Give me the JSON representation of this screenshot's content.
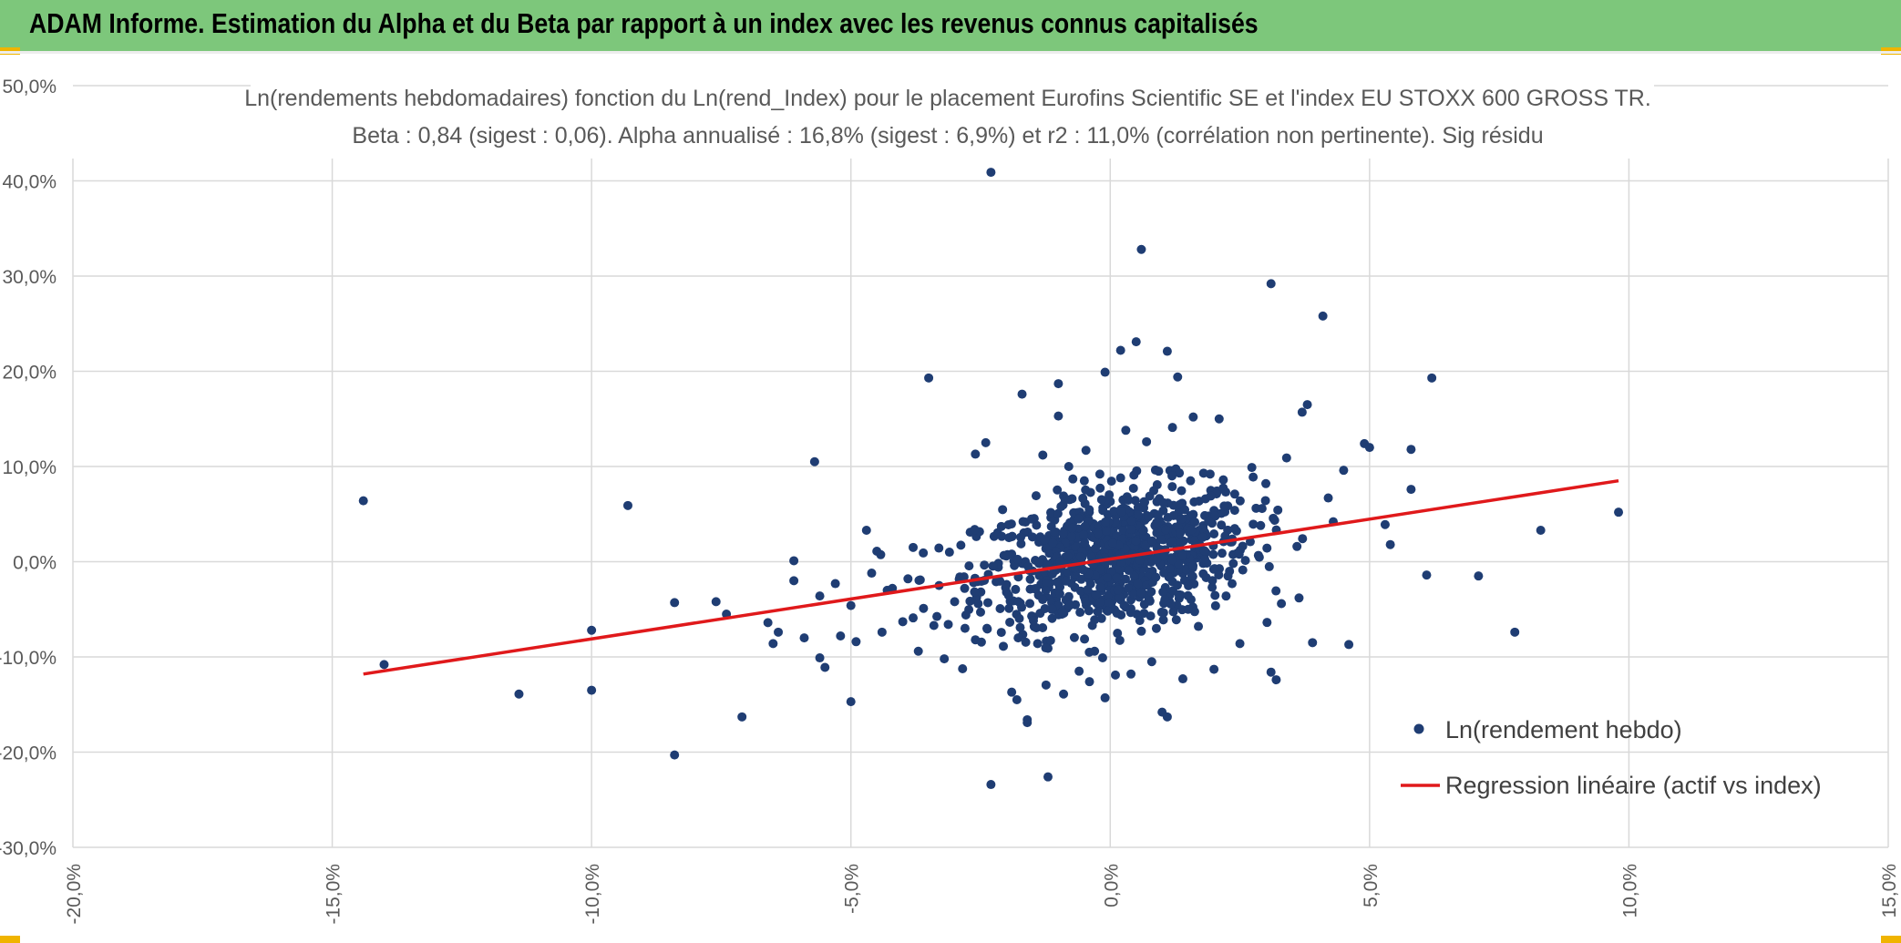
{
  "header": {
    "title": "ADAM Informe. Estimation du Alpha et du Beta par rapport à un index avec les revenus connus capitalisés"
  },
  "colors": {
    "banner": "#7dc77b",
    "points": "#1f3d73",
    "regression": "#e0191b",
    "grid": "#d9d9d9",
    "accent": "#f0b400"
  },
  "chart_data": {
    "type": "scatter",
    "title": "Ln(rendements hebdomadaires) fonction du Ln(rend_Index) pour le placement Eurofins Scientific SE et l'index EU STOXX 600 GROSS TR.",
    "subtitle": "Beta : 0,84 (sigest : 0,06). Alpha annualisé : 16,8% (sigest : 6,9%) et r2 : 11,0% (corrélation non pertinente). Sig résidu",
    "xlim": [
      -20,
      15
    ],
    "ylim": [
      -30,
      50
    ],
    "x_ticks": [
      "-20,0%",
      "-15,0%",
      "-10,0%",
      "-5,0%",
      "0,0%",
      "5,0%",
      "10,0%",
      "15,0%"
    ],
    "y_ticks": [
      "-30,0%",
      "-20,0%",
      "-10,0%",
      "0,0%",
      "10,0%",
      "20,0%",
      "30,0%",
      "40,0%",
      "50,0%"
    ],
    "grid": true,
    "legend_position": "bottom-right",
    "series": [
      {
        "name": "Ln(rendement hebdo)",
        "type": "scatter",
        "points": [
          [
            -14.4,
            6.4
          ],
          [
            -14.0,
            -10.8
          ],
          [
            -11.4,
            -13.9
          ],
          [
            -10.0,
            -7.2
          ],
          [
            -10.0,
            -13.5
          ],
          [
            -9.3,
            5.9
          ],
          [
            -8.4,
            -4.3
          ],
          [
            -8.4,
            -20.3
          ],
          [
            -7.6,
            -4.2
          ],
          [
            -7.4,
            -5.5
          ],
          [
            -7.1,
            -16.3
          ],
          [
            -6.6,
            -6.4
          ],
          [
            -6.5,
            -8.6
          ],
          [
            -6.4,
            -7.4
          ],
          [
            -6.1,
            0.1
          ],
          [
            -6.1,
            -2.0
          ],
          [
            -5.9,
            -8.0
          ],
          [
            -5.7,
            10.5
          ],
          [
            -5.6,
            -10.1
          ],
          [
            -5.6,
            -3.6
          ],
          [
            -5.5,
            -11.1
          ],
          [
            -5.3,
            -2.3
          ],
          [
            -5.2,
            -7.8
          ],
          [
            -5.0,
            -4.6
          ],
          [
            -5.0,
            -14.7
          ],
          [
            -4.9,
            -8.4
          ],
          [
            -4.7,
            3.3
          ],
          [
            -4.5,
            1.1
          ],
          [
            -4.4,
            -7.4
          ],
          [
            -4.2,
            -2.8
          ],
          [
            -4.0,
            -6.3
          ],
          [
            -3.8,
            1.5
          ],
          [
            -3.7,
            -9.4
          ],
          [
            -3.5,
            19.3
          ],
          [
            -3.4,
            -6.7
          ],
          [
            -3.2,
            -10.2
          ],
          [
            -3.0,
            -4.2
          ],
          [
            -2.8,
            -7.0
          ],
          [
            -2.7,
            3.1
          ],
          [
            -2.6,
            11.3
          ],
          [
            -2.4,
            12.5
          ],
          [
            -2.3,
            40.9
          ],
          [
            -2.3,
            -23.4
          ],
          [
            -2.1,
            3.7
          ],
          [
            -2.0,
            -3.2
          ],
          [
            -1.9,
            -13.7
          ],
          [
            -1.8,
            -14.5
          ],
          [
            -1.7,
            17.6
          ],
          [
            -1.6,
            -16.9
          ],
          [
            -1.6,
            -16.6
          ],
          [
            -1.4,
            -8.6
          ],
          [
            -1.3,
            11.2
          ],
          [
            -1.2,
            -22.6
          ],
          [
            -1.0,
            15.3
          ],
          [
            -1.0,
            18.7
          ],
          [
            -0.9,
            -13.9
          ],
          [
            -0.8,
            10.0
          ],
          [
            -0.6,
            -11.5
          ],
          [
            -0.5,
            8.5
          ],
          [
            -0.4,
            -12.6
          ],
          [
            -0.2,
            9.2
          ],
          [
            -0.1,
            19.9
          ],
          [
            -0.1,
            -14.3
          ],
          [
            0.1,
            -11.9
          ],
          [
            0.2,
            22.2
          ],
          [
            0.3,
            13.8
          ],
          [
            0.4,
            -11.8
          ],
          [
            0.5,
            23.1
          ],
          [
            0.6,
            32.8
          ],
          [
            0.7,
            12.6
          ],
          [
            0.8,
            -10.5
          ],
          [
            1.0,
            -15.8
          ],
          [
            1.1,
            -16.3
          ],
          [
            1.1,
            22.1
          ],
          [
            1.2,
            14.1
          ],
          [
            1.3,
            19.4
          ],
          [
            1.4,
            -12.3
          ],
          [
            1.6,
            15.2
          ],
          [
            1.8,
            9.3
          ],
          [
            2.0,
            -11.3
          ],
          [
            2.1,
            15.0
          ],
          [
            2.5,
            -8.6
          ],
          [
            2.9,
            3.8
          ],
          [
            3.0,
            8.2
          ],
          [
            3.1,
            29.2
          ],
          [
            3.1,
            -11.6
          ],
          [
            3.2,
            -12.4
          ],
          [
            3.4,
            10.9
          ],
          [
            3.6,
            1.6
          ],
          [
            3.7,
            15.7
          ],
          [
            3.8,
            16.5
          ],
          [
            3.9,
            -8.5
          ],
          [
            4.1,
            25.8
          ],
          [
            4.3,
            4.2
          ],
          [
            4.5,
            9.6
          ],
          [
            4.6,
            -8.7
          ],
          [
            4.9,
            12.4
          ],
          [
            5.0,
            12.0
          ],
          [
            5.3,
            3.9
          ],
          [
            5.4,
            1.8
          ],
          [
            5.8,
            11.8
          ],
          [
            5.8,
            7.6
          ],
          [
            6.1,
            -1.4
          ],
          [
            6.2,
            19.3
          ],
          [
            7.1,
            -1.5
          ],
          [
            7.8,
            -7.4
          ],
          [
            8.3,
            3.3
          ],
          [
            9.8,
            5.2
          ],
          [
            -4.6,
            -1.2
          ],
          [
            -4.3,
            -3.0
          ],
          [
            -3.9,
            -1.8
          ],
          [
            -3.6,
            -4.9
          ],
          [
            -3.3,
            -2.5
          ],
          [
            -3.1,
            1.0
          ],
          [
            -2.9,
            -1.6
          ],
          [
            -2.5,
            -5.3
          ],
          [
            -2.2,
            -2.1
          ],
          [
            -1.9,
            0.8
          ],
          [
            -1.5,
            2.6
          ],
          [
            -1.1,
            -3.8
          ],
          [
            -0.7,
            4.4
          ],
          [
            -0.3,
            -6.1
          ],
          [
            0.0,
            1.7
          ],
          [
            0.4,
            -4.0
          ],
          [
            0.9,
            6.3
          ],
          [
            1.5,
            -2.2
          ],
          [
            1.9,
            4.8
          ],
          [
            2.3,
            -1.0
          ],
          [
            2.7,
            2.1
          ],
          [
            3.3,
            -4.4
          ],
          [
            -3.8,
            -5.9
          ],
          [
            -2.6,
            -8.2
          ],
          [
            -1.2,
            -9.1
          ],
          [
            0.6,
            -7.3
          ],
          [
            1.7,
            -6.8
          ],
          [
            2.4,
            7.1
          ],
          [
            -0.9,
            6.9
          ],
          [
            0.2,
            8.8
          ]
        ]
      },
      {
        "name": "Regression linéaire (actif vs index)",
        "type": "line",
        "points": [
          [
            -14.4,
            -11.8
          ],
          [
            9.8,
            8.5
          ]
        ]
      }
    ]
  }
}
